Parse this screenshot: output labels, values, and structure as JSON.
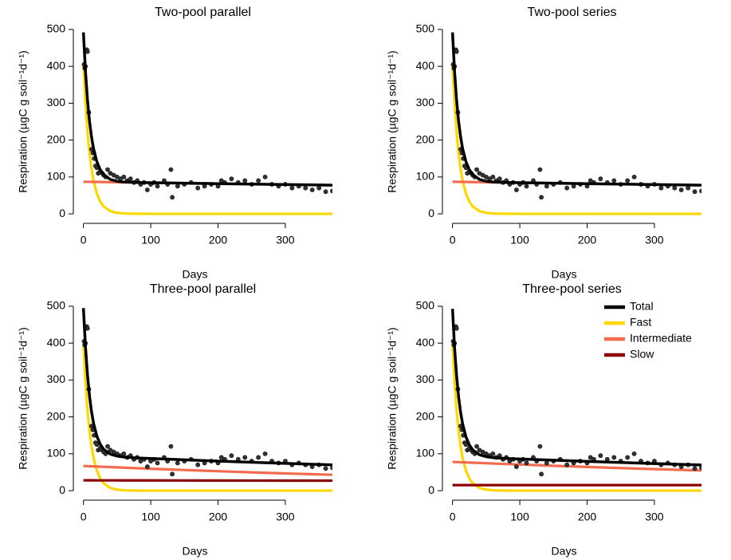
{
  "chart_data": [
    {
      "type": "line",
      "title": "Two-pool parallel",
      "xlabel": "Days",
      "ylabel": "Respiration (µgC g soil⁻¹d⁻¹)",
      "xlim": [
        -15,
        370
      ],
      "ylim": [
        -15,
        515
      ],
      "xticks": [
        0,
        100,
        200,
        300
      ],
      "yticks": [
        0,
        100,
        200,
        300,
        400,
        500
      ],
      "x": [
        0,
        3,
        6,
        9,
        12,
        15,
        20,
        25,
        30,
        40,
        50,
        60,
        80,
        100,
        150,
        200,
        250,
        300,
        370
      ],
      "series": [
        {
          "color": "#FFD700",
          "values": [
            405,
            300,
            222.3,
            164.7,
            122,
            90.4,
            54.8,
            33.2,
            20.2,
            7.4,
            2.7,
            1,
            0.1,
            0,
            0,
            0,
            0,
            0,
            0
          ]
        },
        {
          "color": "#F26B4F",
          "values": [
            87,
            86.9,
            86.8,
            86.8,
            86.7,
            86.6,
            86.5,
            86.4,
            86.2,
            86,
            85.7,
            85.4,
            84.9,
            84.4,
            83.2,
            81.9,
            80.6,
            79.4,
            77.7
          ]
        },
        {
          "type": "scatter",
          "color": "#333333",
          "x": [
            1,
            2,
            3,
            5,
            6,
            8,
            12,
            14,
            16,
            18,
            20,
            22,
            25,
            28,
            30,
            33,
            36,
            40,
            45,
            50,
            55,
            60,
            65,
            70,
            75,
            80,
            85,
            90,
            95,
            100,
            105,
            110,
            120,
            125,
            130,
            132,
            140,
            150,
            160,
            170,
            180,
            190,
            200,
            205,
            210,
            220,
            230,
            240,
            250,
            260,
            270,
            280,
            290,
            300,
            310,
            320,
            330,
            340,
            350,
            360,
            370
          ],
          "values": [
            405,
            395,
            400,
            445,
            440,
            275,
            175,
            165,
            150,
            130,
            125,
            110,
            115,
            110,
            105,
            100,
            120,
            110,
            105,
            100,
            95,
            100,
            90,
            95,
            85,
            90,
            80,
            85,
            65,
            80,
            85,
            75,
            90,
            80,
            120,
            45,
            75,
            80,
            85,
            70,
            75,
            80,
            75,
            90,
            85,
            95,
            85,
            90,
            80,
            90,
            100,
            80,
            75,
            80,
            70,
            75,
            70,
            65,
            70,
            60,
            62
          ]
        },
        {
          "color": "#000000",
          "values": [
            492,
            386.9,
            309.1,
            251.5,
            208.7,
            177,
            141.3,
            119.6,
            106.4,
            93.4,
            88.4,
            86.4,
            85,
            84.4,
            83.2,
            81.9,
            80.6,
            79.4,
            77.7
          ]
        }
      ]
    },
    {
      "type": "line",
      "title": "Two-pool series",
      "xlabel": "Days",
      "ylabel": "Respiration (µgC g soil⁻¹d⁻¹)",
      "xlim": [
        -15,
        370
      ],
      "ylim": [
        -15,
        515
      ],
      "xticks": [
        0,
        100,
        200,
        300
      ],
      "yticks": [
        0,
        100,
        200,
        300,
        400,
        500
      ],
      "x": [
        0,
        3,
        6,
        9,
        12,
        15,
        20,
        25,
        30,
        40,
        50,
        60,
        80,
        100,
        150,
        200,
        250,
        300,
        370
      ],
      "series": [
        {
          "color": "#FFD700",
          "values": [
            405,
            300,
            222.3,
            164.7,
            122,
            90.4,
            54.8,
            33.2,
            20.2,
            7.4,
            2.7,
            1,
            0.1,
            0,
            0,
            0,
            0,
            0,
            0
          ]
        },
        {
          "color": "#F26B4F",
          "values": [
            87,
            86.9,
            86.8,
            86.8,
            86.7,
            86.6,
            86.5,
            86.4,
            86.2,
            86,
            85.7,
            85.4,
            84.9,
            84.4,
            83.2,
            81.9,
            80.6,
            79.4,
            77.7
          ]
        },
        {
          "type": "scatter",
          "color": "#333333",
          "x": [
            1,
            2,
            3,
            5,
            6,
            8,
            12,
            14,
            16,
            18,
            20,
            22,
            25,
            28,
            30,
            33,
            36,
            40,
            45,
            50,
            55,
            60,
            65,
            70,
            75,
            80,
            85,
            90,
            95,
            100,
            105,
            110,
            120,
            125,
            130,
            132,
            140,
            150,
            160,
            170,
            180,
            190,
            200,
            205,
            210,
            220,
            230,
            240,
            250,
            260,
            270,
            280,
            290,
            300,
            310,
            320,
            330,
            340,
            350,
            360,
            370
          ],
          "values": [
            405,
            395,
            400,
            445,
            440,
            275,
            175,
            165,
            150,
            130,
            125,
            110,
            115,
            110,
            105,
            100,
            120,
            110,
            105,
            100,
            95,
            100,
            90,
            95,
            85,
            90,
            80,
            85,
            65,
            80,
            85,
            75,
            90,
            80,
            120,
            45,
            75,
            80,
            85,
            70,
            75,
            80,
            75,
            90,
            85,
            95,
            85,
            90,
            80,
            90,
            100,
            80,
            75,
            80,
            70,
            75,
            70,
            65,
            70,
            60,
            62
          ]
        },
        {
          "color": "#000000",
          "values": [
            492,
            386.9,
            309.1,
            251.5,
            208.7,
            177,
            141.3,
            119.6,
            106.4,
            93.4,
            88.4,
            86.4,
            85,
            84.4,
            83.2,
            81.9,
            80.6,
            79.4,
            77.7
          ]
        }
      ]
    },
    {
      "type": "line",
      "title": "Three-pool parallel",
      "xlabel": "Days",
      "ylabel": "Respiration (µgC g soil⁻¹d⁻¹)",
      "xlim": [
        -15,
        370
      ],
      "ylim": [
        -15,
        515
      ],
      "xticks": [
        0,
        100,
        200,
        300
      ],
      "yticks": [
        0,
        100,
        200,
        300,
        400,
        500
      ],
      "x": [
        0,
        3,
        6,
        9,
        12,
        15,
        20,
        25,
        30,
        40,
        50,
        60,
        80,
        100,
        150,
        200,
        250,
        300,
        370
      ],
      "series": [
        {
          "color": "#FFD700",
          "values": [
            400,
            296.3,
            219.5,
            162.6,
            120.5,
            89.3,
            54.1,
            32.8,
            19.9,
            7.3,
            2.7,
            1,
            0.1,
            0,
            0,
            0,
            0,
            0,
            0
          ]
        },
        {
          "color": "#F26B4F",
          "values": [
            67,
            66.8,
            66.5,
            66.3,
            66,
            65.8,
            65.4,
            65,
            64.6,
            63.9,
            63.1,
            62.3,
            60.8,
            59.4,
            56,
            52.7,
            49.6,
            46.7,
            43
          ]
        },
        {
          "color": "#8B0000",
          "values": [
            28,
            28,
            28,
            28,
            28,
            28,
            27.9,
            27.9,
            27.9,
            27.9,
            27.9,
            27.8,
            27.8,
            27.7,
            27.6,
            27.4,
            27.3,
            27.2,
            27
          ]
        },
        {
          "type": "scatter",
          "color": "#333333",
          "x": [
            1,
            2,
            3,
            5,
            6,
            8,
            12,
            14,
            16,
            18,
            20,
            22,
            25,
            28,
            30,
            33,
            36,
            40,
            45,
            50,
            55,
            60,
            65,
            70,
            75,
            80,
            85,
            90,
            95,
            100,
            105,
            110,
            120,
            125,
            130,
            132,
            140,
            150,
            160,
            170,
            180,
            190,
            200,
            205,
            210,
            220,
            230,
            240,
            250,
            260,
            270,
            280,
            290,
            300,
            310,
            320,
            330,
            340,
            350,
            360,
            370
          ],
          "values": [
            405,
            395,
            400,
            445,
            440,
            275,
            175,
            165,
            150,
            130,
            125,
            110,
            115,
            110,
            105,
            100,
            120,
            110,
            105,
            100,
            95,
            100,
            90,
            95,
            85,
            90,
            80,
            85,
            65,
            80,
            85,
            75,
            90,
            80,
            120,
            45,
            75,
            80,
            85,
            70,
            75,
            80,
            75,
            90,
            85,
            95,
            85,
            90,
            80,
            90,
            100,
            80,
            75,
            80,
            70,
            75,
            70,
            65,
            70,
            60,
            62
          ]
        },
        {
          "color": "#000000",
          "values": [
            495,
            391.1,
            314,
            256.9,
            214.5,
            183.1,
            147.4,
            125.7,
            112.4,
            99.1,
            93.7,
            91.1,
            88.7,
            87.1,
            83.6,
            80.1,
            76.9,
            73.9,
            70
          ]
        }
      ]
    },
    {
      "type": "line",
      "title": "Three-pool series",
      "xlabel": "Days",
      "ylabel": "Respiration (µgC g soil⁻¹d⁻¹)",
      "xlim": [
        -15,
        370
      ],
      "ylim": [
        -15,
        515
      ],
      "xticks": [
        0,
        100,
        200,
        300
      ],
      "yticks": [
        0,
        100,
        200,
        300,
        400,
        500
      ],
      "legend": "topright",
      "x": [
        0,
        3,
        6,
        9,
        12,
        15,
        20,
        25,
        30,
        40,
        50,
        60,
        80,
        100,
        150,
        200,
        250,
        300,
        370
      ],
      "series": [
        {
          "name": "Fast",
          "color": "#FFD700",
          "values": [
            400,
            296.3,
            219.5,
            162.6,
            120.5,
            89.3,
            54.1,
            32.8,
            19.9,
            7.3,
            2.7,
            1,
            0.1,
            0,
            0,
            0,
            0,
            0,
            0
          ]
        },
        {
          "name": "Intermediate",
          "color": "#F26B4F",
          "values": [
            78,
            77.8,
            77.6,
            77.3,
            77.1,
            76.9,
            76.5,
            76.2,
            75.8,
            75.1,
            74.4,
            73.6,
            72.2,
            70.9,
            67.5,
            64.3,
            61.3,
            58.4,
            54.7
          ]
        },
        {
          "name": "Slow",
          "color": "#8B0000",
          "values": [
            15,
            15,
            15,
            15,
            15,
            15,
            15,
            15,
            15,
            15,
            15,
            15,
            15,
            15,
            15,
            15,
            15,
            15,
            15
          ]
        },
        {
          "type": "scatter",
          "color": "#333333",
          "x": [
            1,
            2,
            3,
            5,
            6,
            8,
            12,
            14,
            16,
            18,
            20,
            22,
            25,
            28,
            30,
            33,
            36,
            40,
            45,
            50,
            55,
            60,
            65,
            70,
            75,
            80,
            85,
            90,
            95,
            100,
            105,
            110,
            120,
            125,
            130,
            132,
            140,
            150,
            160,
            170,
            180,
            190,
            200,
            205,
            210,
            220,
            230,
            240,
            250,
            260,
            270,
            280,
            290,
            300,
            310,
            320,
            330,
            340,
            350,
            360,
            370
          ],
          "values": [
            405,
            395,
            400,
            445,
            440,
            275,
            175,
            165,
            150,
            130,
            125,
            110,
            115,
            110,
            105,
            100,
            120,
            110,
            105,
            100,
            95,
            100,
            90,
            95,
            85,
            90,
            80,
            85,
            65,
            80,
            85,
            75,
            90,
            80,
            120,
            45,
            75,
            80,
            85,
            70,
            75,
            80,
            75,
            90,
            85,
            95,
            85,
            90,
            80,
            90,
            100,
            80,
            75,
            80,
            70,
            75,
            70,
            65,
            70,
            60,
            62
          ]
        },
        {
          "name": "Total",
          "color": "#000000",
          "values": [
            493,
            389.1,
            312.1,
            254.9,
            212.6,
            181.2,
            145.6,
            124,
            110.7,
            97.4,
            92.1,
            89.6,
            87.3,
            85.9,
            82.5,
            79.3,
            76.3,
            73.4,
            69.7
          ]
        }
      ]
    }
  ]
}
